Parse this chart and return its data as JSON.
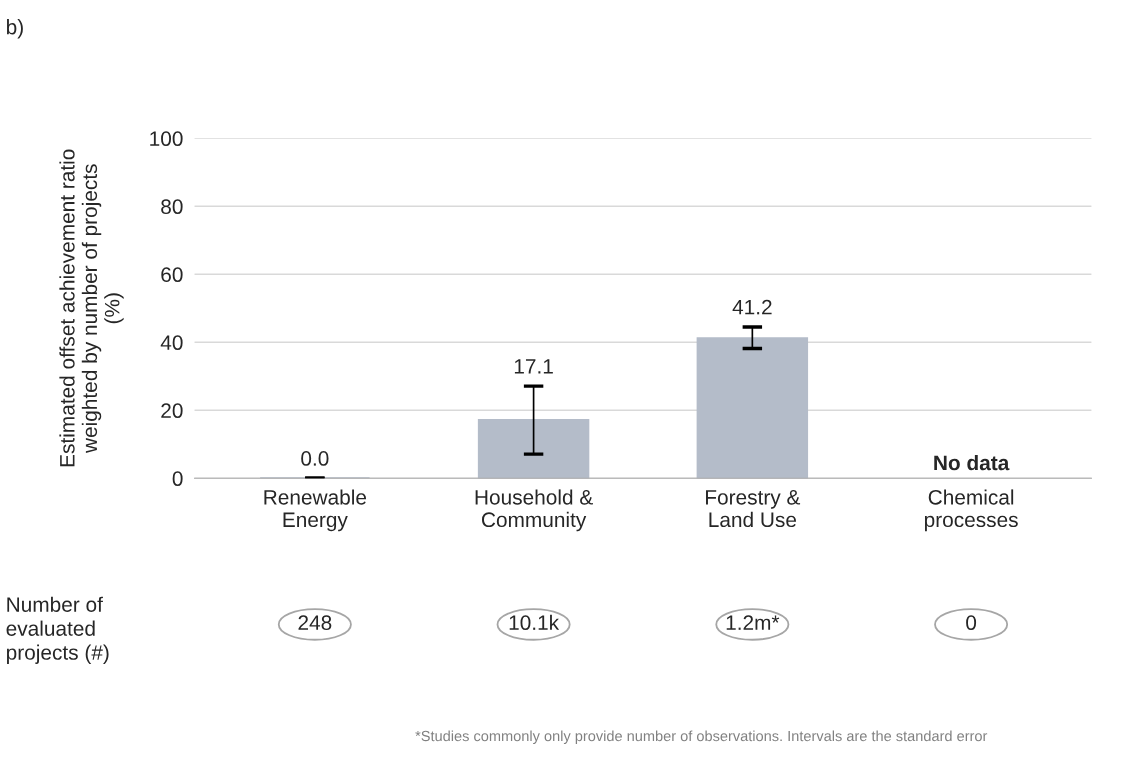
{
  "chart_data": {
    "type": "bar",
    "ylabel": "Estimated offset achievement ratio\nweighted by number of projects\n(%)",
    "categories": [
      "Renewable\nEnergy",
      "Household &\nCommunity",
      "Forestry &\nLand Use",
      "Chemical\nprocesses"
    ],
    "values": [
      0.0,
      17.1,
      41.2,
      null
    ],
    "errors": [
      0,
      [
        7.1,
        27.1
      ],
      [
        38.2,
        44.5
      ],
      null
    ],
    "value_labels": [
      "0.0",
      "17.1",
      "41.2",
      null
    ],
    "color": "#b4bcc9",
    "ylim": [
      0,
      100
    ],
    "yticks": [
      0,
      20,
      40,
      60,
      80,
      100
    ],
    "grid": "y",
    "legend": false,
    "annotations": [
      "b)",
      "No data",
      "Number of\nevaluated\nprojects (#)",
      "248",
      "10.1k",
      "1.2m*",
      "0",
      "*Studies commonly only provide number of observations. Intervals are the standard error"
    ]
  }
}
